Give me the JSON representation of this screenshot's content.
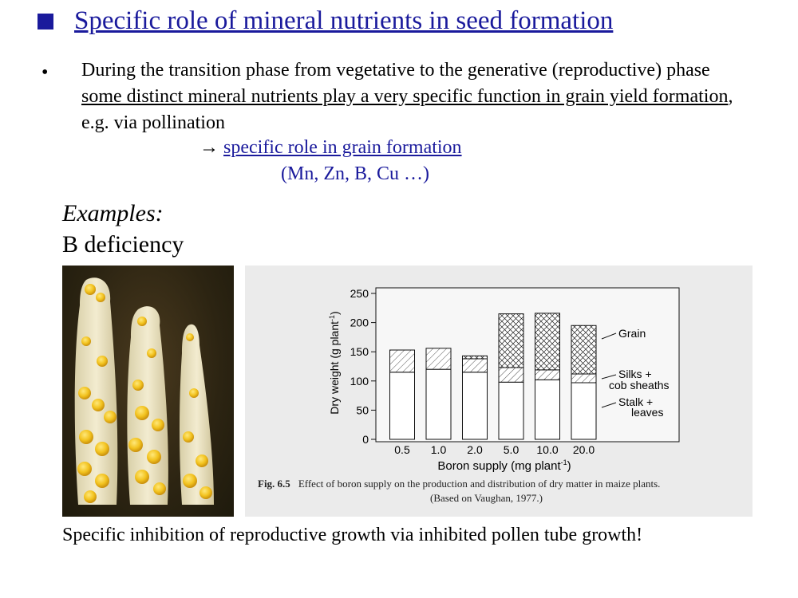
{
  "slide": {
    "title": "Specific role of mineral nutrients in seed formation",
    "bullet_marker": "•",
    "paragraph": {
      "part1": "During the transition phase from vegetative to the generative (reproductive) phase ",
      "underlined": "some distinct mineral nutrients play a very specific function in grain yield formation",
      "part2": ", e.g. via pollination"
    },
    "arrow": "→ ",
    "role_link": "specific role in grain formation",
    "elements": "(Mn, Zn, B, Cu …)",
    "examples_label": "Examples:",
    "deficiency_label": "B deficiency",
    "bottom_caption": "Specific inhibition of reproductive growth via inhibited pollen tube growth!"
  },
  "figure": {
    "fig_number": "Fig. 6.5",
    "fig_text": "Effect of boron supply on the production and distribution of dry matter in maize plants.",
    "fig_source": "(Based on Vaughan, 1977.)",
    "label_grain": "Grain",
    "label_silks_line1": "Silks +",
    "label_silks_line2": "cob sheaths",
    "label_stalk_line1": "Stalk +",
    "label_stalk_line2": "leaves"
  },
  "chart_data": {
    "type": "bar",
    "stacked": true,
    "categories": [
      "0.5",
      "1.0",
      "2.0",
      "5.0",
      "10.0",
      "20.0"
    ],
    "series": [
      {
        "name": "Stalk + leaves",
        "values": [
          115,
          120,
          115,
          98,
          102,
          97
        ],
        "pattern": "none"
      },
      {
        "name": "Silks + cob sheaths",
        "values": [
          38,
          36,
          23,
          25,
          17,
          15
        ],
        "pattern": "diagonal"
      },
      {
        "name": "Grain",
        "values": [
          0,
          0,
          5,
          92,
          97,
          83
        ],
        "pattern": "crosshatch"
      }
    ],
    "xlabel": "Boron supply (mg plant",
    "xlabel_sup": "-1",
    "xlabel_end": ")",
    "ylabel": "Dry weight (g plant",
    "ylabel_sup": "-1",
    "ylabel_end": ")",
    "ylim": [
      0,
      250
    ],
    "yticks": [
      0,
      50,
      100,
      150,
      200,
      250
    ],
    "grid": false,
    "legend": "right, labels with pointer lines"
  }
}
